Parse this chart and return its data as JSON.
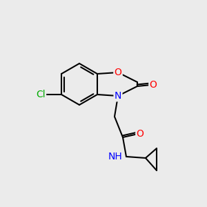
{
  "bg_color": "#ebebeb",
  "bond_color": "#000000",
  "bond_width": 1.5,
  "atom_colors": {
    "O": "#ff0000",
    "N": "#0000ff",
    "Cl": "#00aa00",
    "C": "#000000"
  },
  "font_size": 9
}
